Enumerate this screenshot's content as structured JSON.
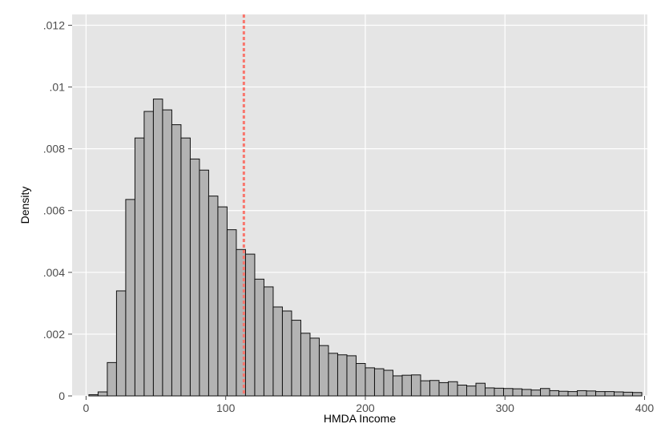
{
  "chart_data": {
    "type": "bar",
    "xlabel": "HMDA Income",
    "ylabel": "Density",
    "xlim": [
      -10,
      402
    ],
    "ylim": [
      0,
      0.01235
    ],
    "x_ticks": [
      0,
      100,
      200,
      300,
      400
    ],
    "x_tick_labels": [
      "0",
      "100",
      "200",
      "300",
      "400"
    ],
    "y_ticks": [
      0,
      0.002,
      0.004,
      0.006,
      0.008,
      0.01,
      0.012
    ],
    "y_tick_labels": [
      "0",
      ".002",
      ".004",
      ".006",
      ".008",
      ".01",
      ".012"
    ],
    "bin_width": 6.6,
    "bin_starts": [
      2.0,
      8.6,
      15.2,
      21.8,
      28.4,
      35.0,
      41.6,
      48.2,
      54.8,
      61.4,
      68.0,
      74.6,
      81.2,
      87.8,
      94.4,
      101.0,
      107.6,
      114.2,
      120.8,
      127.4,
      134.0,
      140.6,
      147.2,
      153.8,
      160.4,
      167.0,
      173.6,
      180.2,
      186.8,
      193.4,
      200.0,
      206.6,
      213.2,
      219.8,
      226.4,
      233.0,
      239.6,
      246.2,
      252.8,
      259.4,
      266.0,
      272.6,
      279.2,
      285.8,
      292.4,
      299.0,
      305.6,
      312.2,
      318.8,
      325.4,
      332.0,
      338.6,
      345.2,
      351.8,
      358.4,
      365.0,
      371.6,
      378.2,
      384.8,
      391.4
    ],
    "values": [
      4e-05,
      0.00013,
      0.00108,
      0.0034,
      0.00636,
      0.00835,
      0.00921,
      0.00961,
      0.00926,
      0.00878,
      0.00835,
      0.00767,
      0.00731,
      0.00647,
      0.00612,
      0.00538,
      0.00474,
      0.00459,
      0.00378,
      0.00353,
      0.00288,
      0.00275,
      0.00245,
      0.00203,
      0.00187,
      0.00163,
      0.00138,
      0.00133,
      0.0013,
      0.00105,
      0.00091,
      0.00088,
      0.00083,
      0.00065,
      0.00067,
      0.00068,
      0.00049,
      0.0005,
      0.00043,
      0.00046,
      0.00035,
      0.00032,
      0.00041,
      0.00026,
      0.00025,
      0.00024,
      0.00023,
      0.00021,
      0.00019,
      0.00024,
      0.00017,
      0.00015,
      0.00014,
      0.00017,
      0.00016,
      0.00014,
      0.00014,
      0.00013,
      0.00012,
      0.00011
    ],
    "reference_line": {
      "x": 113,
      "style": "dashed"
    },
    "grid": true,
    "colors": {
      "panel": "#e5e5e5",
      "grid": "#ffffff",
      "bar_fill": "#b3b3b3",
      "bar_stroke": "#111111",
      "reference_line": "#f8766d"
    }
  }
}
